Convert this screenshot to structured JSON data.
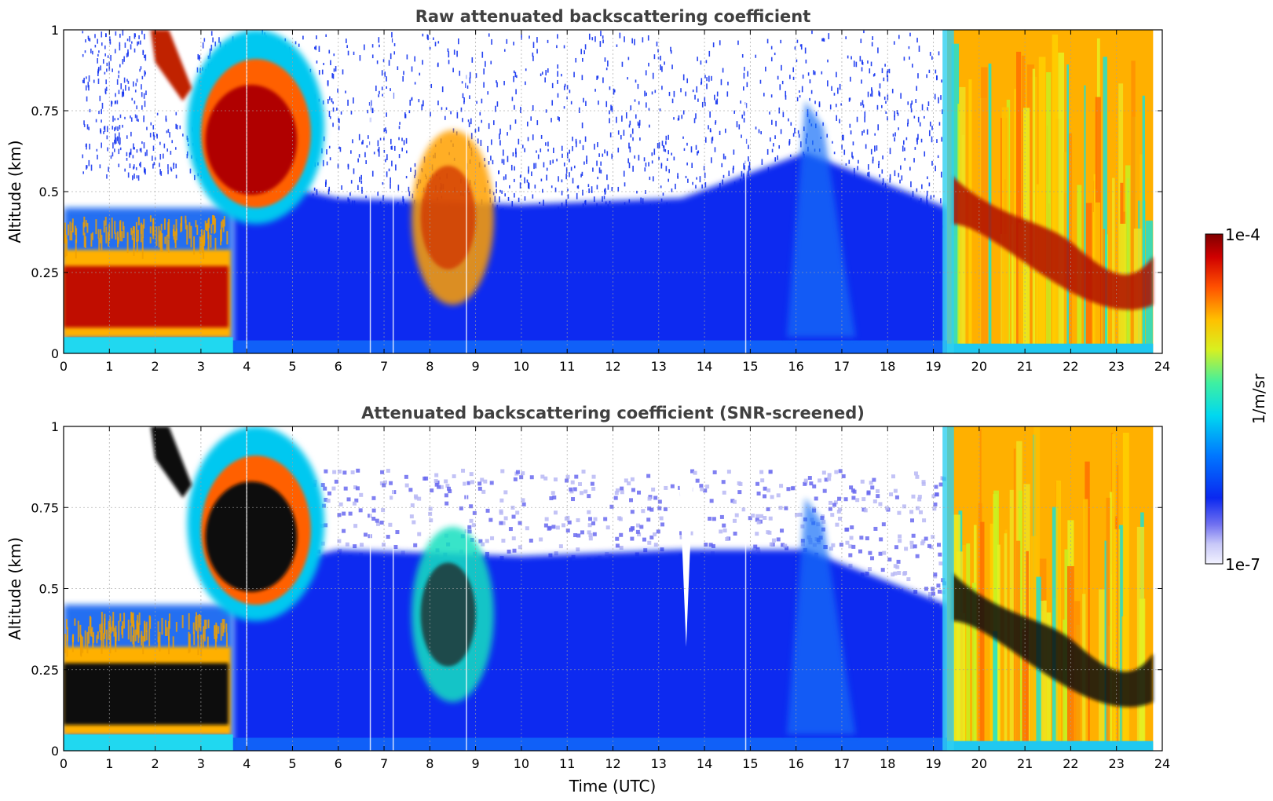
{
  "figure": {
    "xlabel": "Time (UTC)",
    "colorbar": {
      "label": "1/m/sr",
      "max_label": "1e-4",
      "min_label": "1e-7",
      "scale": "log",
      "range": [
        1e-07,
        0.0001
      ],
      "colormap": "jet"
    }
  },
  "chart_data": [
    {
      "type": "heatmap",
      "title": "Raw attenuated backscattering coefficient",
      "xlabel": "",
      "ylabel": "Altitude (km)",
      "xlim": [
        0,
        24
      ],
      "ylim": [
        0,
        1
      ],
      "xticks": [
        "0",
        "1",
        "2",
        "3",
        "4",
        "5",
        "6",
        "7",
        "8",
        "9",
        "10",
        "11",
        "12",
        "13",
        "14",
        "15",
        "16",
        "17",
        "18",
        "19",
        "20",
        "21",
        "22",
        "23",
        "24"
      ],
      "yticks": [
        "0",
        "0.25",
        "0.5",
        "0.75",
        "1"
      ],
      "grid": true,
      "features": [
        {
          "name": "boundary layer aerosol",
          "x": [
            0,
            3.7
          ],
          "y": [
            0,
            0.35
          ],
          "level": "high"
        },
        {
          "name": "elevated aerosol",
          "x": [
            2.7,
            5.7
          ],
          "y": [
            0.55,
            0.85
          ],
          "level": "high"
        },
        {
          "name": "high aerosol plume",
          "x": [
            1.9,
            2.8
          ],
          "y": [
            0.8,
            1.0
          ],
          "level": "high"
        },
        {
          "name": "mid plume",
          "x": [
            7.6,
            9.4
          ],
          "y": [
            0.25,
            0.55
          ],
          "level": "medium-high"
        },
        {
          "name": "clear air signal",
          "x": [
            3.7,
            19.3
          ],
          "y": [
            0,
            0.5
          ],
          "level": "low"
        },
        {
          "name": "fog / cloud",
          "x": [
            19.3,
            23.8
          ],
          "y": [
            0,
            1.0
          ],
          "level": "high"
        }
      ]
    },
    {
      "type": "heatmap",
      "title": "Attenuated backscattering coefficient (SNR-screened)",
      "xlabel": "Time (UTC)",
      "ylabel": "Altitude (km)",
      "xlim": [
        0,
        24
      ],
      "ylim": [
        0,
        1
      ],
      "xticks": [
        "0",
        "1",
        "2",
        "3",
        "4",
        "5",
        "6",
        "7",
        "8",
        "9",
        "10",
        "11",
        "12",
        "13",
        "14",
        "15",
        "16",
        "17",
        "18",
        "19",
        "20",
        "21",
        "22",
        "23",
        "24"
      ],
      "yticks": [
        "0",
        "0.25",
        "0.5",
        "0.75",
        "1"
      ],
      "grid": true,
      "features": [
        {
          "name": "boundary layer aerosol (saturated)",
          "x": [
            0,
            3.7
          ],
          "y": [
            0,
            0.35
          ],
          "level": "saturated"
        },
        {
          "name": "elevated aerosol (saturated)",
          "x": [
            2.7,
            5.7
          ],
          "y": [
            0.55,
            0.85
          ],
          "level": "saturated"
        },
        {
          "name": "screened clear air",
          "x": [
            3.7,
            19.3
          ],
          "y": [
            0,
            0.7
          ],
          "level": "low"
        },
        {
          "name": "fog / cloud",
          "x": [
            19.3,
            23.8
          ],
          "y": [
            0,
            1.0
          ],
          "level": "high"
        }
      ]
    }
  ]
}
